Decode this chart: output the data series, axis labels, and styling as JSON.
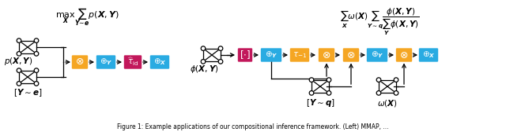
{
  "fig_width": 6.4,
  "fig_height": 1.68,
  "dpi": 100,
  "bg_color": "#ffffff",
  "orange_color": "#F5A623",
  "cyan_color": "#29ABE2",
  "pink_color": "#C2185B",
  "node_color": "#ffffff",
  "node_edge": "#000000"
}
